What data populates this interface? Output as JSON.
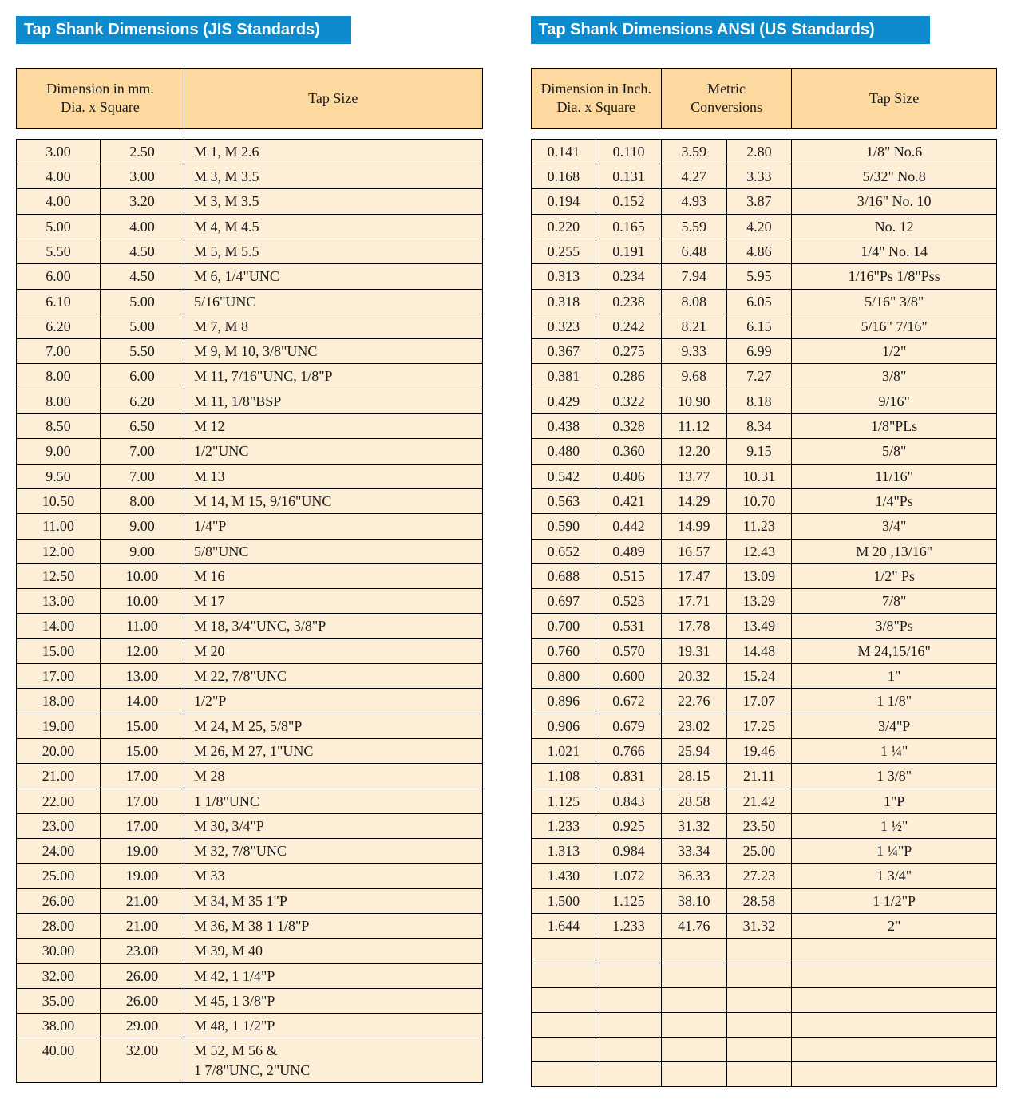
{
  "colors": {
    "title_bg": "#0c8bcf",
    "title_text": "#ffffff",
    "header_cell_bg": "#fdd9a0",
    "body_cell_bg": "#fdeed7",
    "border": "#000000",
    "page_bg": "#ffffff"
  },
  "typography": {
    "title_font": "Arial",
    "title_weight": "bold",
    "title_size_pt": 15,
    "body_font": "Georgia",
    "body_size_pt": 13
  },
  "jis": {
    "title": "Tap Shank Dimensions (JIS Standards)",
    "header_dim": "Dimension in mm.\nDia. x Square",
    "header_tap": "Tap Size",
    "rows": [
      {
        "dia": "3.00",
        "sq": "2.50",
        "tap": "M 1, M 2.6"
      },
      {
        "dia": "4.00",
        "sq": "3.00",
        "tap": "M 3, M 3.5"
      },
      {
        "dia": "4.00",
        "sq": "3.20",
        "tap": "M 3, M 3.5"
      },
      {
        "dia": "5.00",
        "sq": "4.00",
        "tap": "M 4, M 4.5"
      },
      {
        "dia": "5.50",
        "sq": "4.50",
        "tap": "M 5, M 5.5"
      },
      {
        "dia": "6.00",
        "sq": "4.50",
        "tap": "M 6, 1/4\"UNC"
      },
      {
        "dia": "6.10",
        "sq": "5.00",
        "tap": "5/16\"UNC"
      },
      {
        "dia": "6.20",
        "sq": "5.00",
        "tap": "M 7, M 8"
      },
      {
        "dia": "7.00",
        "sq": "5.50",
        "tap": "M 9, M 10, 3/8\"UNC"
      },
      {
        "dia": "8.00",
        "sq": "6.00",
        "tap": "M 11, 7/16\"UNC, 1/8\"P"
      },
      {
        "dia": "8.00",
        "sq": "6.20",
        "tap": "M 11, 1/8\"BSP"
      },
      {
        "dia": "8.50",
        "sq": "6.50",
        "tap": "M 12"
      },
      {
        "dia": "9.00",
        "sq": "7.00",
        "tap": "1/2\"UNC"
      },
      {
        "dia": "9.50",
        "sq": "7.00",
        "tap": "M 13"
      },
      {
        "dia": "10.50",
        "sq": "8.00",
        "tap": "M 14, M 15, 9/16\"UNC"
      },
      {
        "dia": "11.00",
        "sq": "9.00",
        "tap": "1/4\"P"
      },
      {
        "dia": "12.00",
        "sq": "9.00",
        "tap": "5/8\"UNC"
      },
      {
        "dia": "12.50",
        "sq": "10.00",
        "tap": "M 16"
      },
      {
        "dia": "13.00",
        "sq": "10.00",
        "tap": "M 17"
      },
      {
        "dia": "14.00",
        "sq": "11.00",
        "tap": "M 18, 3/4\"UNC, 3/8\"P"
      },
      {
        "dia": "15.00",
        "sq": "12.00",
        "tap": "M 20"
      },
      {
        "dia": "17.00",
        "sq": "13.00",
        "tap": "M 22, 7/8\"UNC"
      },
      {
        "dia": "18.00",
        "sq": "14.00",
        "tap": "1/2\"P"
      },
      {
        "dia": "19.00",
        "sq": "15.00",
        "tap": "M 24, M 25, 5/8\"P"
      },
      {
        "dia": "20.00",
        "sq": "15.00",
        "tap": "M 26, M 27, 1\"UNC"
      },
      {
        "dia": "21.00",
        "sq": "17.00",
        "tap": "M 28"
      },
      {
        "dia": "22.00",
        "sq": "17.00",
        "tap": "1 1/8\"UNC"
      },
      {
        "dia": "23.00",
        "sq": "17.00",
        "tap": "M 30, 3/4\"P"
      },
      {
        "dia": "24.00",
        "sq": "19.00",
        "tap": "M 32, 7/8\"UNC"
      },
      {
        "dia": "25.00",
        "sq": "19.00",
        "tap": "M 33"
      },
      {
        "dia": "26.00",
        "sq": "21.00",
        "tap": "M 34, M 35 1\"P"
      },
      {
        "dia": "28.00",
        "sq": "21.00",
        "tap": "M 36, M 38 1 1/8\"P"
      },
      {
        "dia": "30.00",
        "sq": "23.00",
        "tap": "M 39, M 40"
      },
      {
        "dia": "32.00",
        "sq": "26.00",
        "tap": "M 42, 1 1/4\"P"
      },
      {
        "dia": "35.00",
        "sq": "26.00",
        "tap": "M 45, 1 3/8\"P"
      },
      {
        "dia": "38.00",
        "sq": "29.00",
        "tap": "M 48, 1 1/2\"P"
      },
      {
        "dia": "40.00",
        "sq": "32.00",
        "tap": "M 52, M 56 &\n1 7/8\"UNC, 2\"UNC"
      }
    ]
  },
  "ansi": {
    "title": "Tap Shank Dimensions ANSI (US Standards)",
    "header_dim": "Dimension in Inch.\nDia. x Square",
    "header_metric": "Metric\nConversions",
    "header_tap": "Tap Size",
    "empty_rows": 6,
    "rows": [
      {
        "d": "0.141",
        "s": "0.110",
        "md": "3.59",
        "ms": "2.80",
        "tap": "1/8\" No.6"
      },
      {
        "d": "0.168",
        "s": "0.131",
        "md": "4.27",
        "ms": "3.33",
        "tap": "5/32\" No.8"
      },
      {
        "d": "0.194",
        "s": "0.152",
        "md": "4.93",
        "ms": "3.87",
        "tap": "3/16\" No. 10"
      },
      {
        "d": "0.220",
        "s": "0.165",
        "md": "5.59",
        "ms": "4.20",
        "tap": "No. 12"
      },
      {
        "d": "0.255",
        "s": "0.191",
        "md": "6.48",
        "ms": "4.86",
        "tap": "1/4\" No. 14"
      },
      {
        "d": "0.313",
        "s": "0.234",
        "md": "7.94",
        "ms": "5.95",
        "tap": "1/16\"Ps 1/8\"Pss"
      },
      {
        "d": "0.318",
        "s": "0.238",
        "md": "8.08",
        "ms": "6.05",
        "tap": "5/16\" 3/8\""
      },
      {
        "d": "0.323",
        "s": "0.242",
        "md": "8.21",
        "ms": "6.15",
        "tap": "5/16\" 7/16\""
      },
      {
        "d": "0.367",
        "s": "0.275",
        "md": "9.33",
        "ms": "6.99",
        "tap": "1/2\""
      },
      {
        "d": "0.381",
        "s": "0.286",
        "md": "9.68",
        "ms": "7.27",
        "tap": "3/8\""
      },
      {
        "d": "0.429",
        "s": "0.322",
        "md": "10.90",
        "ms": "8.18",
        "tap": "9/16\""
      },
      {
        "d": "0.438",
        "s": "0.328",
        "md": "11.12",
        "ms": "8.34",
        "tap": "1/8\"PLs"
      },
      {
        "d": "0.480",
        "s": "0.360",
        "md": "12.20",
        "ms": "9.15",
        "tap": "5/8\""
      },
      {
        "d": "0.542",
        "s": "0.406",
        "md": "13.77",
        "ms": "10.31",
        "tap": "11/16\""
      },
      {
        "d": "0.563",
        "s": "0.421",
        "md": "14.29",
        "ms": "10.70",
        "tap": "1/4\"Ps"
      },
      {
        "d": "0.590",
        "s": "0.442",
        "md": "14.99",
        "ms": "11.23",
        "tap": "3/4\""
      },
      {
        "d": "0.652",
        "s": "0.489",
        "md": "16.57",
        "ms": "12.43",
        "tap": "M 20 ,13/16\""
      },
      {
        "d": "0.688",
        "s": "0.515",
        "md": "17.47",
        "ms": "13.09",
        "tap": "1/2\" Ps"
      },
      {
        "d": "0.697",
        "s": "0.523",
        "md": "17.71",
        "ms": "13.29",
        "tap": "7/8\""
      },
      {
        "d": "0.700",
        "s": "0.531",
        "md": "17.78",
        "ms": "13.49",
        "tap": "3/8\"Ps"
      },
      {
        "d": "0.760",
        "s": "0.570",
        "md": "19.31",
        "ms": "14.48",
        "tap": "M 24,15/16\""
      },
      {
        "d": "0.800",
        "s": "0.600",
        "md": "20.32",
        "ms": "15.24",
        "tap": "1\""
      },
      {
        "d": "0.896",
        "s": "0.672",
        "md": "22.76",
        "ms": "17.07",
        "tap": "1 1/8\""
      },
      {
        "d": "0.906",
        "s": "0.679",
        "md": "23.02",
        "ms": "17.25",
        "tap": "3/4\"P"
      },
      {
        "d": "1.021",
        "s": "0.766",
        "md": "25.94",
        "ms": "19.46",
        "tap": "1 ¼\""
      },
      {
        "d": "1.108",
        "s": "0.831",
        "md": "28.15",
        "ms": "21.11",
        "tap": "1 3/8\""
      },
      {
        "d": "1.125",
        "s": "0.843",
        "md": "28.58",
        "ms": "21.42",
        "tap": "1\"P"
      },
      {
        "d": "1.233",
        "s": "0.925",
        "md": "31.32",
        "ms": "23.50",
        "tap": "1 ½\""
      },
      {
        "d": "1.313",
        "s": "0.984",
        "md": "33.34",
        "ms": "25.00",
        "tap": "1 ¼\"P"
      },
      {
        "d": "1.430",
        "s": "1.072",
        "md": "36.33",
        "ms": "27.23",
        "tap": "1 3/4\""
      },
      {
        "d": "1.500",
        "s": "1.125",
        "md": "38.10",
        "ms": "28.58",
        "tap": "1 1/2\"P"
      },
      {
        "d": "1.644",
        "s": "1.233",
        "md": "41.76",
        "ms": "31.32",
        "tap": "2\""
      }
    ]
  }
}
